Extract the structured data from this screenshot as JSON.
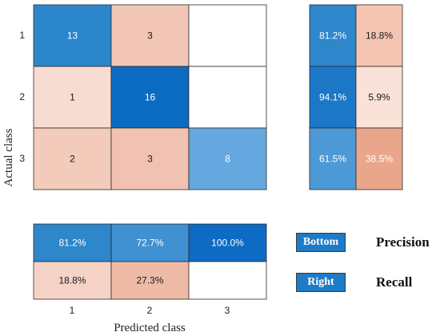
{
  "chart_data": {
    "type": "heatmap",
    "confusion_matrix": {
      "class_labels": [
        "1",
        "2",
        "3"
      ],
      "xlabel": "Predicted class",
      "ylabel": "Actual class",
      "values": [
        [
          13,
          3,
          null
        ],
        [
          1,
          16,
          null
        ],
        [
          2,
          3,
          8
        ]
      ],
      "cell_colors": [
        [
          "#2c86cc",
          "#f2c6b5",
          "#ffffff"
        ],
        [
          "#f6dcd1",
          "#0b6bc3",
          "#ffffff"
        ],
        [
          "#f2cbbb",
          "#f1c2b1",
          "#64a8df"
        ]
      ]
    },
    "row_summary": {
      "values": [
        [
          "81.2%",
          "18.8%"
        ],
        [
          "94.1%",
          "5.9%"
        ],
        [
          "61.5%",
          "38.5%"
        ]
      ],
      "cell_colors": [
        [
          "#2e86cb",
          "#f4c5b3"
        ],
        [
          "#1c78c7",
          "#f9e2d8"
        ],
        [
          "#4d9ad6",
          "#e9a68b"
        ]
      ]
    },
    "column_summary": {
      "values": [
        [
          "81.2%",
          "72.7%",
          "100.0%"
        ],
        [
          "18.8%",
          "27.3%",
          null
        ]
      ],
      "cell_colors": [
        [
          "#2e86cb",
          "#3f91d2",
          "#0d6bc3"
        ],
        [
          "#f5d3c6",
          "#efbba7",
          "#ffffff"
        ]
      ]
    },
    "legend": [
      {
        "tag": "Bottom",
        "meaning": "Precision",
        "color": "#1f7ac8"
      },
      {
        "tag": "Right",
        "meaning": "Recall",
        "color": "#1f7ac8"
      }
    ]
  }
}
